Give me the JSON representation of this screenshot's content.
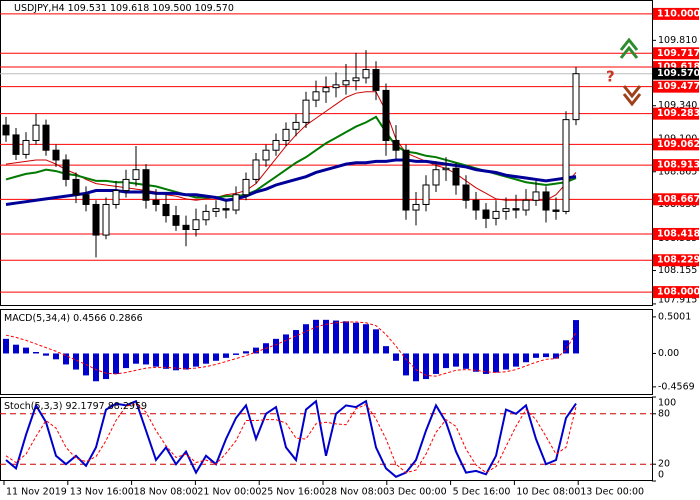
{
  "chart_data": [
    {
      "type": "candlestick",
      "title": "USDJPY,H4",
      "header_values": "109.531 109.618 109.500 109.570",
      "open": [
        109.2,
        109.13,
        108.99,
        109.09,
        109.2,
        109.02,
        108.95,
        108.81,
        108.7,
        108.63,
        108.41,
        108.63,
        108.73,
        108.81,
        108.88,
        108.66,
        108.63,
        108.55,
        108.48,
        108.45,
        108.52,
        108.58,
        108.6,
        108.59,
        108.7,
        108.81,
        108.95,
        109.02,
        109.09,
        109.17,
        109.22,
        109.38,
        109.44,
        109.47,
        109.49,
        109.52,
        109.54,
        109.6,
        109.45,
        109.09,
        109.02,
        108.59,
        108.63,
        108.77,
        108.88,
        108.89,
        108.77,
        108.66,
        108.59,
        108.53,
        108.58,
        108.6,
        108.59,
        108.66,
        108.72,
        108.59,
        108.58,
        109.24
      ],
      "high": [
        109.26,
        109.18,
        109.15,
        109.28,
        109.24,
        109.06,
        108.99,
        108.86,
        108.76,
        108.66,
        108.68,
        108.8,
        108.88,
        109.05,
        108.92,
        108.74,
        108.7,
        108.62,
        108.55,
        108.6,
        108.63,
        108.66,
        108.66,
        108.76,
        108.86,
        109.0,
        109.06,
        109.14,
        109.22,
        109.28,
        109.44,
        109.52,
        109.55,
        109.58,
        109.64,
        109.72,
        109.74,
        109.66,
        109.5,
        109.2,
        109.06,
        108.72,
        108.84,
        108.94,
        108.97,
        108.93,
        108.84,
        108.72,
        108.64,
        108.66,
        108.68,
        108.7,
        108.74,
        108.8,
        108.76,
        108.68,
        109.3,
        109.618
      ],
      "low": [
        109.08,
        108.95,
        108.96,
        109.06,
        108.98,
        108.9,
        108.76,
        108.64,
        108.58,
        108.25,
        108.38,
        108.6,
        108.68,
        108.76,
        108.6,
        108.58,
        108.5,
        108.44,
        108.33,
        108.4,
        108.48,
        108.54,
        108.53,
        108.56,
        108.66,
        108.78,
        108.9,
        108.98,
        109.05,
        109.12,
        109.18,
        109.33,
        109.36,
        109.4,
        109.42,
        109.45,
        109.5,
        109.38,
        108.98,
        108.96,
        108.52,
        108.48,
        108.58,
        108.72,
        108.8,
        108.7,
        108.6,
        108.52,
        108.46,
        108.48,
        108.52,
        108.53,
        108.55,
        108.62,
        108.5,
        108.52,
        108.56,
        109.2
      ],
      "close": [
        109.13,
        108.99,
        109.09,
        109.2,
        109.02,
        108.95,
        108.81,
        108.7,
        108.63,
        108.41,
        108.63,
        108.73,
        108.81,
        108.88,
        108.66,
        108.63,
        108.55,
        108.48,
        108.45,
        108.52,
        108.58,
        108.6,
        108.59,
        108.7,
        108.81,
        108.95,
        109.02,
        109.09,
        109.17,
        109.22,
        109.38,
        109.44,
        109.47,
        109.49,
        109.52,
        109.54,
        109.6,
        109.45,
        109.09,
        109.02,
        108.59,
        108.63,
        108.77,
        108.88,
        108.89,
        108.77,
        108.66,
        108.59,
        108.53,
        108.58,
        108.6,
        108.59,
        108.66,
        108.72,
        108.59,
        108.58,
        109.24,
        109.57
      ],
      "series": [
        {
          "color": "#cc0000",
          "line_width": 1,
          "values": [
            108.92,
            108.93,
            108.94,
            108.95,
            108.95,
            108.92,
            108.88,
            108.85,
            108.81,
            108.78,
            108.77,
            108.76,
            108.75,
            108.74,
            108.73,
            108.72,
            108.7,
            108.69,
            108.67,
            108.66,
            108.67,
            108.68,
            108.7,
            108.71,
            108.73,
            108.78,
            108.87,
            108.96,
            109.05,
            109.13,
            109.2,
            109.25,
            109.3,
            109.35,
            109.4,
            109.43,
            109.44,
            109.44,
            109.3,
            109.1,
            109.0,
            108.97,
            108.94,
            108.91,
            108.89,
            108.85,
            108.8,
            108.75,
            108.71,
            108.67,
            108.66,
            108.66,
            108.66,
            108.66,
            108.66,
            108.7,
            108.78,
            108.86
          ]
        },
        {
          "color": "#007a00",
          "line_width": 2,
          "values": [
            108.81,
            108.83,
            108.85,
            108.86,
            108.88,
            108.87,
            108.85,
            108.84,
            108.82,
            108.8,
            108.8,
            108.79,
            108.79,
            108.78,
            108.77,
            108.76,
            108.74,
            108.72,
            108.7,
            108.68,
            108.68,
            108.68,
            108.69,
            108.69,
            108.7,
            108.73,
            108.78,
            108.83,
            108.88,
            108.93,
            108.97,
            109.02,
            109.07,
            109.11,
            109.15,
            109.19,
            109.22,
            109.26,
            109.15,
            109.05,
            109.01,
            109.0,
            108.98,
            108.97,
            108.95,
            108.93,
            108.91,
            108.89,
            108.87,
            108.85,
            108.83,
            108.81,
            108.79,
            108.78,
            108.77,
            108.78,
            108.79,
            108.82
          ]
        },
        {
          "color": "#000099",
          "line_width": 3,
          "values": [
            108.63,
            108.64,
            108.65,
            108.66,
            108.67,
            108.68,
            108.69,
            108.7,
            108.71,
            108.73,
            108.73,
            108.73,
            108.72,
            108.72,
            108.72,
            108.71,
            108.71,
            108.71,
            108.7,
            108.7,
            108.69,
            108.68,
            108.66,
            108.67,
            108.69,
            108.72,
            108.74,
            108.77,
            108.79,
            108.81,
            108.83,
            108.86,
            108.88,
            108.9,
            108.92,
            108.93,
            108.93,
            108.94,
            108.94,
            108.95,
            108.95,
            108.94,
            108.94,
            108.93,
            108.92,
            108.91,
            108.9,
            108.88,
            108.87,
            108.86,
            108.84,
            108.83,
            108.82,
            108.81,
            108.8,
            108.81,
            108.82,
            108.83
          ]
        }
      ],
      "ylim": [
        107.9,
        110.1
      ],
      "yticks": [
        {
          "value": 109.81,
          "label": "109.810"
        },
        {
          "value": 109.34,
          "label": "109.340"
        },
        {
          "value": 109.1,
          "label": "109.100"
        },
        {
          "value": 108.865,
          "label": "108.865"
        },
        {
          "value": 108.63,
          "label": "108.630"
        },
        {
          "value": 108.385,
          "label": "108.385"
        },
        {
          "value": 108.155,
          "label": "108.155"
        },
        {
          "value": 107.915,
          "label": "107.915"
        }
      ],
      "levels": [
        {
          "value": 110,
          "label": "110.000"
        },
        {
          "value": 109.717,
          "label": "109.717"
        },
        {
          "value": 109.618,
          "label": "109.618"
        },
        {
          "value": 109.477,
          "label": "109.477"
        },
        {
          "value": 109.283,
          "label": "109.283"
        },
        {
          "value": 109.062,
          "label": "109.062"
        },
        {
          "value": 108.913,
          "label": "108.913"
        },
        {
          "value": 108.667,
          "label": "108.667"
        },
        {
          "value": 108.418,
          "label": "108.418"
        },
        {
          "value": 108.229,
          "label": "108.229"
        },
        {
          "value": 108,
          "label": "108.000"
        }
      ],
      "level_color": "#ff0000",
      "current_price": {
        "value": 109.57,
        "label": "109.570"
      },
      "x_labels": [
        "11 Nov 2019",
        "13 Nov 16:00",
        "18 Nov 08:00",
        "21 Nov 00:00",
        "25 Nov 16:00",
        "28 Nov 08:00",
        "3 Dec 00:00",
        "5 Dec 16:00",
        "10 Dec 08:00",
        "13 Dec 00:00"
      ]
    },
    {
      "type": "bar",
      "title": "MACD(5,34,4)",
      "header_values": "0.4566 0.2866",
      "color": "#0000cc",
      "values": [
        0.2,
        0.12,
        0.08,
        0.02,
        -0.03,
        -0.08,
        -0.15,
        -0.22,
        -0.3,
        -0.38,
        -0.35,
        -0.28,
        -0.2,
        -0.14,
        -0.15,
        -0.18,
        -0.21,
        -0.23,
        -0.22,
        -0.18,
        -0.14,
        -0.1,
        -0.06,
        -0.02,
        0.03,
        0.08,
        0.14,
        0.2,
        0.26,
        0.32,
        0.4,
        0.46,
        0.46,
        0.45,
        0.44,
        0.42,
        0.4,
        0.33,
        0.1,
        -0.1,
        -0.3,
        -0.38,
        -0.35,
        -0.28,
        -0.2,
        -0.18,
        -0.21,
        -0.25,
        -0.28,
        -0.26,
        -0.22,
        -0.18,
        -0.12,
        -0.06,
        -0.05,
        -0.07,
        0.18,
        0.4566
      ],
      "series": [
        {
          "color": "#ff0000",
          "dashed": true,
          "line_width": 1,
          "values": [
            0.25,
            0.22,
            0.18,
            0.13,
            0.08,
            0.03,
            -0.03,
            -0.09,
            -0.15,
            -0.22,
            -0.27,
            -0.28,
            -0.26,
            -0.23,
            -0.2,
            -0.19,
            -0.19,
            -0.2,
            -0.21,
            -0.2,
            -0.18,
            -0.15,
            -0.11,
            -0.07,
            -0.03,
            0.02,
            0.07,
            0.12,
            0.18,
            0.24,
            0.3,
            0.36,
            0.4,
            0.42,
            0.43,
            0.43,
            0.42,
            0.38,
            0.26,
            0.1,
            -0.08,
            -0.22,
            -0.3,
            -0.31,
            -0.27,
            -0.23,
            -0.22,
            -0.23,
            -0.25,
            -0.26,
            -0.25,
            -0.22,
            -0.17,
            -0.12,
            -0.08,
            -0.07,
            0.05,
            0.2866
          ]
        }
      ],
      "ylim": [
        -0.568,
        0.608
      ],
      "yticks": [
        0.5001,
        {
          "value": 0,
          "label": "0.00"
        },
        -0.4569
      ]
    },
    {
      "type": "line",
      "title": "Stoch(5,3,3)",
      "header_values": "92.1797 88.2959",
      "series": [
        {
          "color": "#0000cc",
          "line_width": 2,
          "values": [
            25,
            15,
            55,
            90,
            70,
            30,
            20,
            30,
            18,
            40,
            85,
            92,
            90,
            95,
            60,
            25,
            40,
            20,
            35,
            10,
            30,
            20,
            50,
            75,
            90,
            50,
            80,
            88,
            40,
            25,
            85,
            95,
            30,
            80,
            90,
            88,
            95,
            40,
            15,
            5,
            10,
            25,
            60,
            90,
            70,
            35,
            10,
            12,
            8,
            30,
            85,
            80,
            90,
            50,
            20,
            25,
            75,
            92.1797
          ]
        },
        {
          "color": "#ff0000",
          "dashed": true,
          "line_width": 1,
          "values": [
            30,
            22,
            32,
            53,
            72,
            63,
            40,
            27,
            23,
            29,
            48,
            72,
            89,
            92,
            82,
            60,
            42,
            28,
            32,
            22,
            25,
            20,
            33,
            48,
            72,
            72,
            73,
            73,
            69,
            51,
            50,
            68,
            70,
            68,
            67,
            86,
            91,
            74,
            50,
            20,
            10,
            13,
            32,
            58,
            73,
            65,
            38,
            19,
            10,
            17,
            41,
            65,
            85,
            73,
            53,
            32,
            40,
            88.2959
          ]
        }
      ],
      "ylim": [
        0,
        100
      ],
      "yticks": [
        100,
        80,
        20,
        0
      ],
      "dashed_levels": true,
      "level_color": "#cc0000"
    }
  ]
}
